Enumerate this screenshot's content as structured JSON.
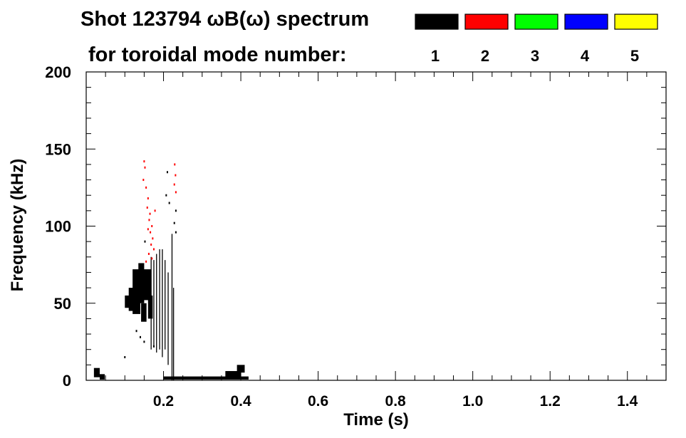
{
  "chart_data": {
    "type": "heatmap",
    "title_line1": "Shot 123794 ωB(ω) spectrum",
    "title_line2": "for toroidal mode number:",
    "legend": [
      {
        "label": "1",
        "color": "#000000"
      },
      {
        "label": "2",
        "color": "#ff0000"
      },
      {
        "label": "3",
        "color": "#00ff00"
      },
      {
        "label": "4",
        "color": "#0000ff"
      },
      {
        "label": "5",
        "color": "#ffff00"
      }
    ],
    "xlabel": "Time (s)",
    "ylabel": "Frequency (kHz)",
    "xlim": [
      0.0,
      1.5
    ],
    "ylim": [
      0,
      200
    ],
    "xticks": [
      {
        "value": 0.2,
        "label": "0.2"
      },
      {
        "value": 0.4,
        "label": "0.4"
      },
      {
        "value": 0.6,
        "label": "0.6"
      },
      {
        "value": 0.8,
        "label": "0.8"
      },
      {
        "value": 1.0,
        "label": "1.0"
      },
      {
        "value": 1.2,
        "label": "1.2"
      },
      {
        "value": 1.4,
        "label": "1.4"
      }
    ],
    "yticks": [
      {
        "value": 0,
        "label": "0"
      },
      {
        "value": 50,
        "label": "50"
      },
      {
        "value": 100,
        "label": "100"
      },
      {
        "value": 150,
        "label": "150"
      },
      {
        "value": 200,
        "label": "200"
      }
    ],
    "x_minor_step": 0.05,
    "y_minor_step": 10,
    "regions": [
      {
        "mode": 1,
        "t0": 0.1,
        "t1": 0.112,
        "f0": 47,
        "f1": 55
      },
      {
        "mode": 1,
        "t0": 0.11,
        "t1": 0.125,
        "f0": 45,
        "f1": 60
      },
      {
        "mode": 1,
        "t0": 0.12,
        "t1": 0.14,
        "f0": 43,
        "f1": 72
      },
      {
        "mode": 1,
        "t0": 0.135,
        "t1": 0.15,
        "f0": 50,
        "f1": 76
      },
      {
        "mode": 1,
        "t0": 0.148,
        "t1": 0.168,
        "f0": 52,
        "f1": 72
      },
      {
        "mode": 1,
        "t0": 0.142,
        "t1": 0.156,
        "f0": 38,
        "f1": 50
      },
      {
        "mode": 1,
        "t0": 0.16,
        "t1": 0.172,
        "f0": 40,
        "f1": 55
      },
      {
        "mode": 1,
        "t0": 0.2,
        "t1": 0.42,
        "f0": 0.5,
        "f1": 2.5
      },
      {
        "mode": 1,
        "t0": 0.36,
        "t1": 0.4,
        "f0": 2,
        "f1": 6
      },
      {
        "mode": 1,
        "t0": 0.39,
        "t1": 0.41,
        "f0": 5,
        "f1": 10
      },
      {
        "mode": 1,
        "t0": 0.02,
        "t1": 0.035,
        "f0": 2,
        "f1": 8
      },
      {
        "mode": 1,
        "t0": 0.035,
        "t1": 0.048,
        "f0": 0.5,
        "f1": 4
      }
    ],
    "lines": [
      {
        "mode": 1,
        "t": 0.168,
        "f0": 20,
        "f1": 80
      },
      {
        "mode": 1,
        "t": 0.175,
        "f0": 22,
        "f1": 78
      },
      {
        "mode": 1,
        "t": 0.182,
        "f0": 18,
        "f1": 82
      },
      {
        "mode": 1,
        "t": 0.19,
        "f0": 20,
        "f1": 85
      },
      {
        "mode": 1,
        "t": 0.197,
        "f0": 15,
        "f1": 85
      },
      {
        "mode": 1,
        "t": 0.204,
        "f0": 20,
        "f1": 78
      },
      {
        "mode": 1,
        "t": 0.212,
        "f0": 10,
        "f1": 70
      },
      {
        "mode": 1,
        "t": 0.222,
        "f0": 0,
        "f1": 95
      },
      {
        "mode": 1,
        "t": 0.226,
        "f0": 0,
        "f1": 60
      }
    ],
    "points": [
      {
        "mode": 2,
        "t": 0.15,
        "f": 142
      },
      {
        "mode": 2,
        "t": 0.152,
        "f": 138
      },
      {
        "mode": 2,
        "t": 0.148,
        "f": 130
      },
      {
        "mode": 2,
        "t": 0.155,
        "f": 125
      },
      {
        "mode": 2,
        "t": 0.16,
        "f": 118
      },
      {
        "mode": 2,
        "t": 0.158,
        "f": 112
      },
      {
        "mode": 2,
        "t": 0.165,
        "f": 108
      },
      {
        "mode": 2,
        "t": 0.163,
        "f": 104
      },
      {
        "mode": 2,
        "t": 0.17,
        "f": 100
      },
      {
        "mode": 2,
        "t": 0.166,
        "f": 96
      },
      {
        "mode": 2,
        "t": 0.172,
        "f": 92
      },
      {
        "mode": 2,
        "t": 0.168,
        "f": 88
      },
      {
        "mode": 2,
        "t": 0.175,
        "f": 85
      },
      {
        "mode": 2,
        "t": 0.162,
        "f": 82
      },
      {
        "mode": 2,
        "t": 0.17,
        "f": 79
      },
      {
        "mode": 2,
        "t": 0.155,
        "f": 77
      },
      {
        "mode": 2,
        "t": 0.178,
        "f": 110
      },
      {
        "mode": 2,
        "t": 0.16,
        "f": 98
      },
      {
        "mode": 2,
        "t": 0.229,
        "f": 140
      },
      {
        "mode": 2,
        "t": 0.231,
        "f": 133
      },
      {
        "mode": 2,
        "t": 0.228,
        "f": 127
      },
      {
        "mode": 2,
        "t": 0.232,
        "f": 122
      },
      {
        "mode": 1,
        "t": 0.232,
        "f": 110
      },
      {
        "mode": 1,
        "t": 0.228,
        "f": 102
      },
      {
        "mode": 1,
        "t": 0.232,
        "f": 96
      },
      {
        "mode": 1,
        "t": 0.21,
        "f": 135
      },
      {
        "mode": 1,
        "t": 0.207,
        "f": 120
      },
      {
        "mode": 1,
        "t": 0.215,
        "f": 115
      },
      {
        "mode": 1,
        "t": 0.14,
        "f": 28
      },
      {
        "mode": 1,
        "t": 0.15,
        "f": 25
      },
      {
        "mode": 1,
        "t": 0.175,
        "f": 22
      },
      {
        "mode": 1,
        "t": 0.13,
        "f": 32
      },
      {
        "mode": 1,
        "t": 0.1,
        "f": 15
      },
      {
        "mode": 1,
        "t": 0.152,
        "f": 90
      }
    ]
  }
}
